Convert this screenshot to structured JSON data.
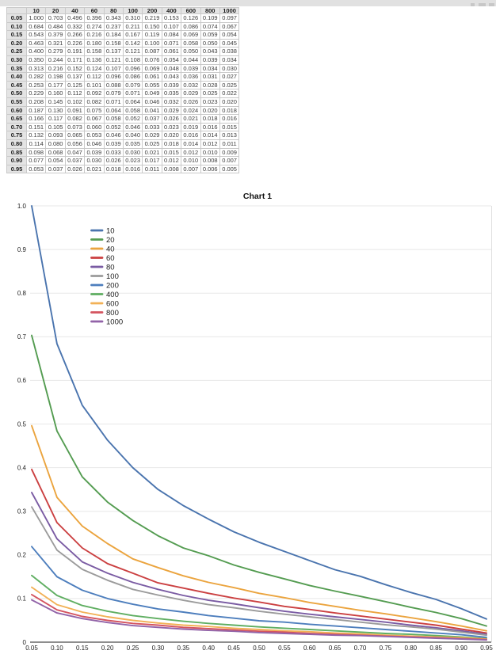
{
  "table": {
    "corner_label": "",
    "columns": [
      "10",
      "20",
      "40",
      "60",
      "80",
      "100",
      "200",
      "400",
      "600",
      "800",
      "1000"
    ],
    "row_labels": [
      "0.05",
      "0.10",
      "0.15",
      "0.20",
      "0.25",
      "0.30",
      "0.35",
      "0.40",
      "0.45",
      "0.50",
      "0.55",
      "0.60",
      "0.65",
      "0.70",
      "0.75",
      "0.80",
      "0.85",
      "0.90",
      "0.95"
    ],
    "rows": [
      [
        "1.000",
        "0.703",
        "0.496",
        "0.396",
        "0.343",
        "0.310",
        "0.219",
        "0.153",
        "0.126",
        "0.109",
        "0.097"
      ],
      [
        "0.684",
        "0.484",
        "0.332",
        "0.274",
        "0.237",
        "0.211",
        "0.150",
        "0.107",
        "0.086",
        "0.074",
        "0.067"
      ],
      [
        "0.543",
        "0.379",
        "0.266",
        "0.216",
        "0.184",
        "0.167",
        "0.119",
        "0.084",
        "0.069",
        "0.059",
        "0.054"
      ],
      [
        "0.463",
        "0.321",
        "0.226",
        "0.180",
        "0.158",
        "0.142",
        "0.100",
        "0.071",
        "0.058",
        "0.050",
        "0.045"
      ],
      [
        "0.400",
        "0.279",
        "0.191",
        "0.158",
        "0.137",
        "0.121",
        "0.087",
        "0.061",
        "0.050",
        "0.043",
        "0.038"
      ],
      [
        "0.350",
        "0.244",
        "0.171",
        "0.136",
        "0.121",
        "0.108",
        "0.076",
        "0.054",
        "0.044",
        "0.039",
        "0.034"
      ],
      [
        "0.313",
        "0.216",
        "0.152",
        "0.124",
        "0.107",
        "0.096",
        "0.069",
        "0.048",
        "0.039",
        "0.034",
        "0.030"
      ],
      [
        "0.282",
        "0.198",
        "0.137",
        "0.112",
        "0.096",
        "0.086",
        "0.061",
        "0.043",
        "0.036",
        "0.031",
        "0.027"
      ],
      [
        "0.253",
        "0.177",
        "0.125",
        "0.101",
        "0.088",
        "0.079",
        "0.055",
        "0.039",
        "0.032",
        "0.028",
        "0.025"
      ],
      [
        "0.229",
        "0.160",
        "0.112",
        "0.092",
        "0.079",
        "0.071",
        "0.049",
        "0.035",
        "0.029",
        "0.025",
        "0.022"
      ],
      [
        "0.208",
        "0.145",
        "0.102",
        "0.082",
        "0.071",
        "0.064",
        "0.046",
        "0.032",
        "0.026",
        "0.023",
        "0.020"
      ],
      [
        "0.187",
        "0.130",
        "0.091",
        "0.075",
        "0.064",
        "0.058",
        "0.041",
        "0.029",
        "0.024",
        "0.020",
        "0.018"
      ],
      [
        "0.166",
        "0.117",
        "0.082",
        "0.067",
        "0.058",
        "0.052",
        "0.037",
        "0.026",
        "0.021",
        "0.018",
        "0.016"
      ],
      [
        "0.151",
        "0.105",
        "0.073",
        "0.060",
        "0.052",
        "0.046",
        "0.033",
        "0.023",
        "0.019",
        "0.016",
        "0.015"
      ],
      [
        "0.132",
        "0.093",
        "0.065",
        "0.053",
        "0.046",
        "0.040",
        "0.029",
        "0.020",
        "0.016",
        "0.014",
        "0.013"
      ],
      [
        "0.114",
        "0.080",
        "0.056",
        "0.046",
        "0.039",
        "0.035",
        "0.025",
        "0.018",
        "0.014",
        "0.012",
        "0.011"
      ],
      [
        "0.098",
        "0.068",
        "0.047",
        "0.039",
        "0.033",
        "0.030",
        "0.021",
        "0.015",
        "0.012",
        "0.010",
        "0.009"
      ],
      [
        "0.077",
        "0.054",
        "0.037",
        "0.030",
        "0.026",
        "0.023",
        "0.017",
        "0.012",
        "0.010",
        "0.008",
        "0.007"
      ],
      [
        "0.053",
        "0.037",
        "0.026",
        "0.021",
        "0.018",
        "0.016",
        "0.011",
        "0.008",
        "0.007",
        "0.006",
        "0.005"
      ]
    ]
  },
  "chart_data": {
    "type": "line",
    "title": "Chart 1",
    "x": [
      0.05,
      0.1,
      0.15,
      0.2,
      0.25,
      0.3,
      0.35,
      0.4,
      0.45,
      0.5,
      0.55,
      0.6,
      0.65,
      0.7,
      0.75,
      0.8,
      0.85,
      0.9,
      0.95
    ],
    "x_tick_labels": [
      "0.05",
      "0.10",
      "0.15",
      "0.20",
      "0.25",
      "0.30",
      "0.35",
      "0.40",
      "0.45",
      "0.50",
      "0.55",
      "0.60",
      "0.65",
      "0.70",
      "0.75",
      "0.80",
      "0.85",
      "0.90",
      "0.95"
    ],
    "y_tick_labels": [
      "0",
      "0.1",
      "0.2",
      "0.3",
      "0.4",
      "0.5",
      "0.6",
      "0.7",
      "0.8",
      "0.9",
      "1.0"
    ],
    "xlim": [
      0.05,
      0.95
    ],
    "ylim": [
      0,
      1.0
    ],
    "xlabel": "",
    "ylabel": "",
    "grid": "horizontal",
    "legend_position": "inside-top-left",
    "series": [
      {
        "name": "10",
        "color": "#4a74ae",
        "values": [
          1.0,
          0.684,
          0.543,
          0.463,
          0.4,
          0.35,
          0.313,
          0.282,
          0.253,
          0.229,
          0.208,
          0.187,
          0.166,
          0.151,
          0.132,
          0.114,
          0.098,
          0.077,
          0.053
        ]
      },
      {
        "name": "20",
        "color": "#549c51",
        "values": [
          0.703,
          0.484,
          0.379,
          0.321,
          0.279,
          0.244,
          0.216,
          0.198,
          0.177,
          0.16,
          0.145,
          0.13,
          0.117,
          0.105,
          0.093,
          0.08,
          0.068,
          0.054,
          0.037
        ]
      },
      {
        "name": "40",
        "color": "#eba43e",
        "values": [
          0.496,
          0.332,
          0.266,
          0.226,
          0.191,
          0.171,
          0.152,
          0.137,
          0.125,
          0.112,
          0.102,
          0.091,
          0.082,
          0.073,
          0.065,
          0.056,
          0.047,
          0.037,
          0.026
        ]
      },
      {
        "name": "60",
        "color": "#cb4041",
        "values": [
          0.396,
          0.274,
          0.216,
          0.18,
          0.158,
          0.136,
          0.124,
          0.112,
          0.101,
          0.092,
          0.082,
          0.075,
          0.067,
          0.06,
          0.053,
          0.046,
          0.039,
          0.03,
          0.021
        ]
      },
      {
        "name": "80",
        "color": "#7a5ba3",
        "values": [
          0.343,
          0.237,
          0.184,
          0.158,
          0.137,
          0.121,
          0.107,
          0.096,
          0.088,
          0.079,
          0.071,
          0.064,
          0.058,
          0.052,
          0.046,
          0.039,
          0.033,
          0.026,
          0.018
        ]
      },
      {
        "name": "100",
        "color": "#9b9b9b",
        "values": [
          0.31,
          0.211,
          0.167,
          0.142,
          0.121,
          0.108,
          0.096,
          0.086,
          0.079,
          0.071,
          0.064,
          0.058,
          0.052,
          0.046,
          0.04,
          0.035,
          0.03,
          0.023,
          0.016
        ]
      },
      {
        "name": "200",
        "color": "#4d7ebd",
        "values": [
          0.219,
          0.15,
          0.119,
          0.1,
          0.087,
          0.076,
          0.069,
          0.061,
          0.055,
          0.049,
          0.046,
          0.041,
          0.037,
          0.033,
          0.029,
          0.025,
          0.021,
          0.017,
          0.011
        ]
      },
      {
        "name": "400",
        "color": "#5fae61",
        "values": [
          0.153,
          0.107,
          0.084,
          0.071,
          0.061,
          0.054,
          0.048,
          0.043,
          0.039,
          0.035,
          0.032,
          0.029,
          0.026,
          0.023,
          0.02,
          0.018,
          0.015,
          0.012,
          0.008
        ]
      },
      {
        "name": "600",
        "color": "#f2b156",
        "values": [
          0.126,
          0.086,
          0.069,
          0.058,
          0.05,
          0.044,
          0.039,
          0.036,
          0.032,
          0.029,
          0.026,
          0.024,
          0.021,
          0.019,
          0.016,
          0.014,
          0.012,
          0.01,
          0.007
        ]
      },
      {
        "name": "800",
        "color": "#d4545f",
        "values": [
          0.109,
          0.074,
          0.059,
          0.05,
          0.043,
          0.039,
          0.034,
          0.031,
          0.028,
          0.025,
          0.023,
          0.02,
          0.018,
          0.016,
          0.014,
          0.012,
          0.01,
          0.008,
          0.006
        ]
      },
      {
        "name": "1000",
        "color": "#9263a8",
        "values": [
          0.097,
          0.067,
          0.054,
          0.045,
          0.038,
          0.034,
          0.03,
          0.027,
          0.025,
          0.022,
          0.02,
          0.018,
          0.016,
          0.015,
          0.013,
          0.011,
          0.009,
          0.007,
          0.005
        ]
      }
    ]
  }
}
